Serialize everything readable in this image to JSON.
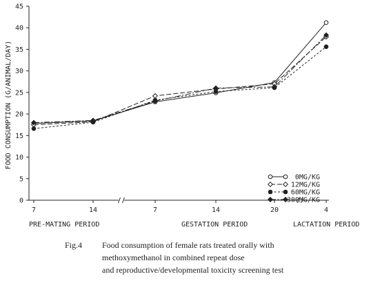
{
  "chart_data": {
    "type": "line",
    "ylabel": "FOOD CONSUMPTION (G/ANIMAL/DAY)",
    "ylim": [
      0,
      45
    ],
    "yticks": [
      "0",
      "5",
      "10",
      "15",
      "20",
      "25",
      "30",
      "35",
      "40",
      "45"
    ],
    "xticks": [
      "7",
      "14",
      "7",
      "14",
      "20",
      "4"
    ],
    "periods": [
      "PRE-MATING PERIOD",
      "GESTATION PERIOD",
      "LACTATION PERIOD"
    ],
    "legend_position": "bottom-right",
    "series": [
      {
        "name": "0MG/KG",
        "marker": "open-circle",
        "dash": "solid",
        "values": [
          17.8,
          18.4,
          22.8,
          24.9,
          27.3,
          41.2
        ]
      },
      {
        "name": "12MG/KG",
        "marker": "open-diamond",
        "dash": "long",
        "values": [
          17.5,
          18.2,
          24.2,
          25.8,
          27.0,
          37.9
        ]
      },
      {
        "name": "60MG/KG",
        "marker": "filled-circle",
        "dash": "short",
        "values": [
          16.6,
          18.1,
          23.2,
          25.2,
          26.1,
          35.6
        ]
      },
      {
        "name": "300MG/KG",
        "marker": "filled-diamond",
        "dash": "dashdot",
        "values": [
          18.0,
          18.5,
          23.0,
          26.0,
          26.3,
          38.3
        ]
      }
    ]
  },
  "caption": {
    "label": "Fig.4",
    "lines": [
      "Food consumption of female rats treated orally with",
      "methoxymethanol in combined repeat dose",
      "and reproductive/developmental toxicity screening test"
    ]
  }
}
